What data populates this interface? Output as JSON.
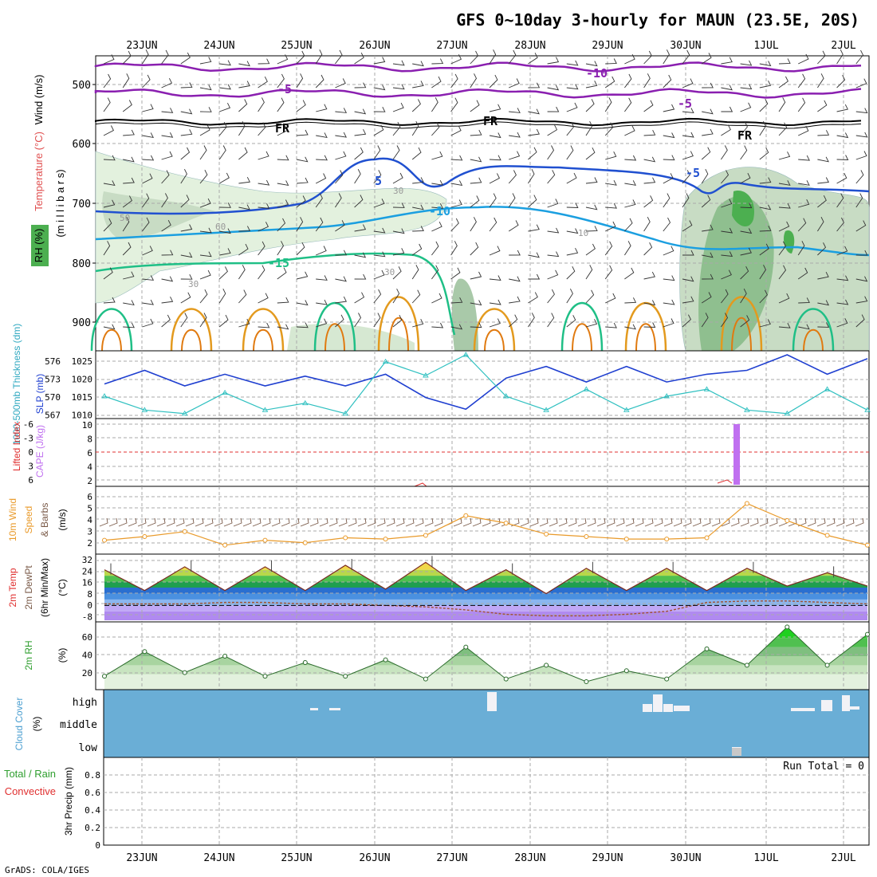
{
  "title": "GFS 0~10day 3-hourly for MAUN (23.5E, 20S)",
  "footer": "GrADS: COLA/IGES",
  "x_axis": {
    "date_labels": [
      "23JUN",
      "24JUN",
      "25JUN",
      "26JUN",
      "27JUN",
      "28JUN",
      "29JUN",
      "30JUN",
      "1JUL",
      "2JUL"
    ]
  },
  "colors": {
    "rh_green_dark": "#4caf50",
    "rh_green_light": "#e3f1de",
    "temp_purple": "#8a1fb0",
    "temp_blue": "#2050d0",
    "temp_cyan": "#1b9fe0",
    "temp_teal": "#1fbf86",
    "temp_orange": "#e39a1e",
    "slp_blue": "#1f3fd0",
    "thickness_cyan": "#2fc0c0",
    "cape_purple": "#c070f0",
    "wind_orange": "#e99a2a",
    "barb_brown": "#7a5a48",
    "cloud_blue": "#6aaed6",
    "precip_green": "#2e9e2e",
    "precip_red": "#e03030"
  },
  "panels": {
    "upper_air": {
      "labels": {
        "wind": "Wind (m/s)",
        "temperature": "Temperature (°C)",
        "rh": "RH (%)",
        "units": "(m i l l i b a r s)"
      },
      "y_ticks": [
        "500",
        "600",
        "700",
        "800",
        "900"
      ],
      "contour_labels": [
        "-10",
        "-5",
        "-5",
        "FR",
        "FR",
        "FR",
        "5",
        "-5",
        "-10",
        "-15",
        "30",
        "50",
        "60",
        "30",
        "30",
        "10"
      ]
    },
    "slp_thickness": {
      "labels": {
        "thickness": "1000-500mb Thickness (dm)",
        "slp": "SLP (mb)"
      },
      "left_ticks": [
        "576",
        "573",
        "570",
        "567"
      ],
      "right_ticks": [
        "1025",
        "1020",
        "1015",
        "1010"
      ]
    },
    "cape_li": {
      "labels": {
        "li": "Lifted Index",
        "cape": "CAPE (J/kg)"
      },
      "left_ticks": [
        "-6",
        "-3",
        "0",
        "3",
        "6"
      ],
      "right_ticks": [
        "10",
        "8",
        "6",
        "4",
        "2"
      ]
    },
    "wind10m": {
      "labels": {
        "line1": "10m Wind",
        "line2": "Speed",
        "line3": "& Barbs",
        "unit": "(m/s)"
      },
      "y_ticks": [
        "6",
        "5",
        "4",
        "3",
        "2"
      ]
    },
    "temp2m": {
      "labels": {
        "line1": "2m Temp",
        "line2": "2m DewPt",
        "line3": "(6hr Min/Max)",
        "unit": "(°C)"
      },
      "y_ticks": [
        "32",
        "24",
        "16",
        "8",
        "0",
        "-8"
      ]
    },
    "rh2m": {
      "labels": {
        "name": "2m RH",
        "unit": "(%)"
      },
      "y_ticks": [
        "60",
        "40",
        "20"
      ]
    },
    "cloud": {
      "labels": {
        "name": "Cloud Cover",
        "unit": "(%)"
      },
      "levels": [
        "high",
        "middle",
        "low"
      ]
    },
    "precip": {
      "labels": {
        "total": "Total / Rain",
        "conv": "Convective",
        "name": "3hr Precip (mm)"
      },
      "y_ticks": [
        "0.8",
        "0.6",
        "0.4",
        "0.2",
        "0"
      ],
      "run_total": "Run Total = 0"
    }
  },
  "chart_data": [
    {
      "type": "line",
      "title": "",
      "xlabel": "",
      "ylabel": "SLP (mb) / 1000-500mb Thickness (dm)",
      "x": [
        "22JUN18",
        "23JUN06",
        "23JUN18",
        "24JUN06",
        "24JUN18",
        "25JUN06",
        "25JUN18",
        "26JUN06",
        "26JUN18",
        "27JUN06",
        "27JUN18",
        "28JUN06",
        "28JUN18",
        "29JUN06",
        "29JUN18",
        "30JUN06",
        "30JUN18",
        "1JUL06",
        "1JUL18",
        "2JUL06"
      ],
      "series": [
        {
          "name": "SLP",
          "values": [
            1018.5,
            1022,
            1018,
            1021,
            1018,
            1020.5,
            1018,
            1021,
            1015,
            1012,
            1020,
            1023,
            1019,
            1023,
            1019,
            1021,
            1022,
            1026,
            1021,
            1025
          ]
        },
        {
          "name": "Thickness",
          "values": [
            570,
            568,
            567.5,
            570.5,
            568,
            569,
            567.5,
            575,
            573,
            576,
            570,
            568,
            571,
            568,
            570,
            571,
            568,
            567.5,
            571,
            568
          ]
        }
      ],
      "ylim_slp": [
        1010,
        1026
      ],
      "ylim_thickness": [
        567,
        576
      ]
    },
    {
      "type": "bar",
      "title": "",
      "xlabel": "",
      "ylabel": "CAPE (J/kg)",
      "categories": [
        "30JUN18"
      ],
      "values": [
        10
      ],
      "ylim": [
        0,
        10
      ]
    },
    {
      "type": "line",
      "title": "",
      "xlabel": "",
      "ylabel": "10m Wind Speed (m/s)",
      "x": [
        "22JUN18",
        "23JUN06",
        "23JUN18",
        "24JUN06",
        "24JUN18",
        "25JUN06",
        "25JUN18",
        "26JUN06",
        "26JUN18",
        "27JUN06",
        "27JUN18",
        "28JUN06",
        "28JUN18",
        "29JUN06",
        "29JUN18",
        "30JUN06",
        "30JUN18",
        "1JUL06",
        "1JUL18",
        "2JUL06"
      ],
      "series": [
        {
          "name": "10m Wind Speed",
          "values": [
            2.6,
            2.9,
            3.3,
            2.2,
            2.6,
            2.4,
            2.8,
            2.7,
            3.0,
            4.6,
            4.0,
            3.1,
            2.9,
            2.7,
            2.7,
            2.8,
            5.6,
            4.2,
            3.0,
            2.2
          ]
        }
      ],
      "ylim": [
        1.6,
        6.8
      ]
    },
    {
      "type": "area",
      "title": "",
      "xlabel": "",
      "ylabel": "2m Temp / DewPt (°C)",
      "x": [
        "22JUN18",
        "23JUN06",
        "23JUN18",
        "24JUN06",
        "24JUN18",
        "25JUN06",
        "25JUN18",
        "26JUN06",
        "26JUN18",
        "27JUN06",
        "27JUN18",
        "28JUN06",
        "28JUN18",
        "29JUN06",
        "29JUN18",
        "30JUN06",
        "30JUN18",
        "1JUL06",
        "1JUL18",
        "2JUL06"
      ],
      "series": [
        {
          "name": "2m Temp",
          "values": [
            24,
            10,
            26,
            10,
            26,
            10,
            27,
            11,
            29,
            10,
            24,
            8,
            25,
            10,
            25,
            10,
            25,
            13,
            22,
            13
          ]
        },
        {
          "name": "2m DewPt",
          "values": [
            1,
            1,
            1,
            2,
            2,
            1,
            1,
            0,
            -1,
            -3,
            -6,
            -7,
            -7,
            -6,
            -4,
            2,
            3,
            3,
            2,
            1
          ]
        }
      ],
      "ylim": [
        -10,
        34
      ]
    },
    {
      "type": "area",
      "title": "",
      "xlabel": "",
      "ylabel": "2m RH (%)",
      "x": [
        "22JUN18",
        "23JUN06",
        "23JUN18",
        "24JUN06",
        "24JUN18",
        "25JUN06",
        "25JUN18",
        "26JUN06",
        "26JUN18",
        "27JUN06",
        "27JUN18",
        "28JUN06",
        "28JUN18",
        "29JUN06",
        "29JUN18",
        "30JUN06",
        "30JUN18",
        "1JUL06",
        "1JUL18",
        "2JUL06"
      ],
      "series": [
        {
          "name": "2m RH",
          "values": [
            18,
            45,
            22,
            40,
            18,
            33,
            18,
            36,
            15,
            50,
            15,
            30,
            12,
            24,
            15,
            48,
            30,
            72,
            30,
            64
          ]
        }
      ],
      "ylim": [
        5,
        75
      ]
    },
    {
      "type": "bar",
      "title": "",
      "xlabel": "",
      "ylabel": "3hr Precip (mm)",
      "categories": [],
      "values": [],
      "ylim": [
        0,
        1
      ]
    }
  ]
}
